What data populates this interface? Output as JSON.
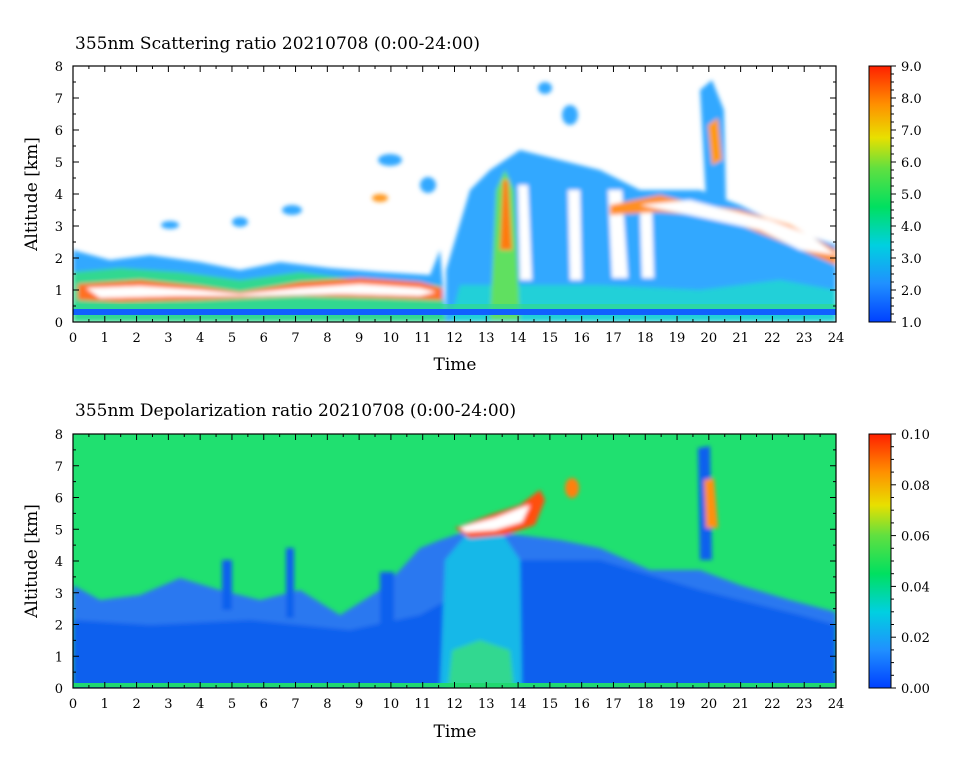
{
  "chart_data": [
    {
      "type": "heatmap",
      "title": "355nm Scattering ratio  20210708 (0:00-24:00)",
      "xlabel": "Time",
      "ylabel": "Altitude [km]",
      "x_ticks": [
        "0",
        "1",
        "2",
        "3",
        "4",
        "5",
        "6",
        "7",
        "8",
        "9",
        "10",
        "11",
        "12",
        "13",
        "14",
        "15",
        "16",
        "17",
        "18",
        "19",
        "20",
        "21",
        "22",
        "23",
        "24"
      ],
      "y_ticks": [
        "0",
        "1",
        "2",
        "3",
        "4",
        "5",
        "6",
        "7",
        "8"
      ],
      "xlim": [
        0,
        24
      ],
      "ylim": [
        0,
        8
      ],
      "colorbar": {
        "ticks": [
          "1.0",
          "2.0",
          "3.0",
          "4.0",
          "5.0",
          "6.0",
          "7.0",
          "8.0",
          "9.0"
        ],
        "range": [
          1.0,
          9.0
        ]
      },
      "features": [
        {
          "kind": "surface_layer",
          "x": [
            0,
            24
          ],
          "y": [
            0.2,
            0.4
          ],
          "value": 1.2
        },
        {
          "kind": "boundary_layer",
          "x": [
            0,
            11.5
          ],
          "y": [
            0.4,
            2.2
          ],
          "value": 4.0
        },
        {
          "kind": "cloud_core",
          "x": [
            0.2,
            11.2
          ],
          "y": [
            0.8,
            1.4
          ],
          "value": 9.0
        },
        {
          "kind": "plume",
          "x": [
            12.5,
            14.2
          ],
          "y": [
            0.4,
            5.0
          ],
          "value": 6.5
        },
        {
          "kind": "cloud_layer",
          "x": [
            17,
            23.5
          ],
          "y": [
            2.5,
            4.0
          ],
          "value": 9.0
        },
        {
          "kind": "cloud_column",
          "x": [
            19.6,
            20.6
          ],
          "y": [
            3.8,
            7.4
          ],
          "value": 7.0
        }
      ]
    },
    {
      "type": "heatmap",
      "title": "355nm Depolarization ratio  20210708 (0:00-24:00)",
      "xlabel": "Time",
      "ylabel": "Altitude [km]",
      "x_ticks": [
        "0",
        "1",
        "2",
        "3",
        "4",
        "5",
        "6",
        "7",
        "8",
        "9",
        "10",
        "11",
        "12",
        "13",
        "14",
        "15",
        "16",
        "17",
        "18",
        "19",
        "20",
        "21",
        "22",
        "23",
        "24"
      ],
      "y_ticks": [
        "0",
        "1",
        "2",
        "3",
        "4",
        "5",
        "6",
        "7",
        "8"
      ],
      "xlim": [
        0,
        24
      ],
      "ylim": [
        0,
        8
      ],
      "colorbar": {
        "ticks": [
          "0.00",
          "0.02",
          "0.04",
          "0.06",
          "0.08",
          "0.10"
        ],
        "range": [
          0.0,
          0.1
        ]
      },
      "background_value": 0.04,
      "features": [
        {
          "kind": "boundary_layer",
          "x": [
            0,
            24
          ],
          "y": [
            0.1,
            2.5
          ],
          "value": 0.012
        },
        {
          "kind": "dust_layer",
          "x": [
            11.5,
            14
          ],
          "y": [
            0.1,
            5.0
          ],
          "value": 0.025
        },
        {
          "kind": "high_depol_layer",
          "x": [
            11.8,
            14.6
          ],
          "y": [
            4.5,
            6.5
          ],
          "value": 0.1
        },
        {
          "kind": "high_depol_column",
          "x": [
            19.6,
            20.4
          ],
          "y": [
            5.0,
            6.5
          ],
          "value": 0.085
        }
      ]
    }
  ]
}
